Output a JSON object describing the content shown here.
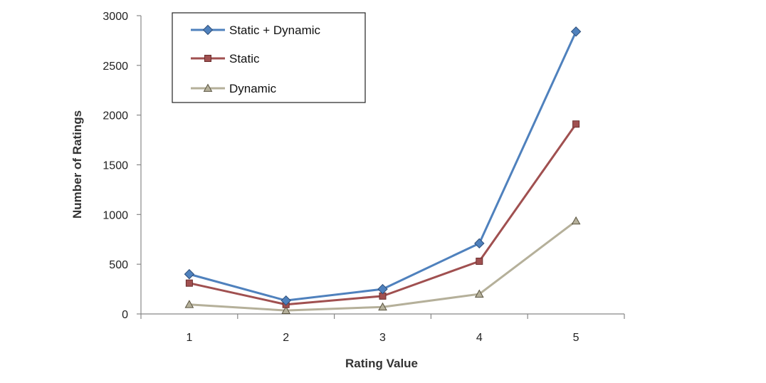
{
  "chart_data": {
    "type": "line",
    "title": "",
    "xlabel": "Rating Value",
    "ylabel": "Number of Ratings",
    "categories": [
      "1",
      "2",
      "3",
      "4",
      "5"
    ],
    "ylim": [
      0,
      3000
    ],
    "yticks": [
      "0",
      "500",
      "1000",
      "1500",
      "2000",
      "2500",
      "3000"
    ],
    "grid": false,
    "legend_position": "top-left",
    "series": [
      {
        "name": "Static + Dynamic",
        "values": [
          400,
          135,
          250,
          710,
          2840
        ],
        "color": "#4F81BD",
        "marker": "diamond"
      },
      {
        "name": "Static",
        "values": [
          310,
          95,
          180,
          530,
          1910
        ],
        "color": "#A05050",
        "marker": "square"
      },
      {
        "name": "Dynamic",
        "values": [
          95,
          35,
          70,
          200,
          935
        ],
        "color": "#B5B09A",
        "marker": "triangle"
      }
    ]
  }
}
